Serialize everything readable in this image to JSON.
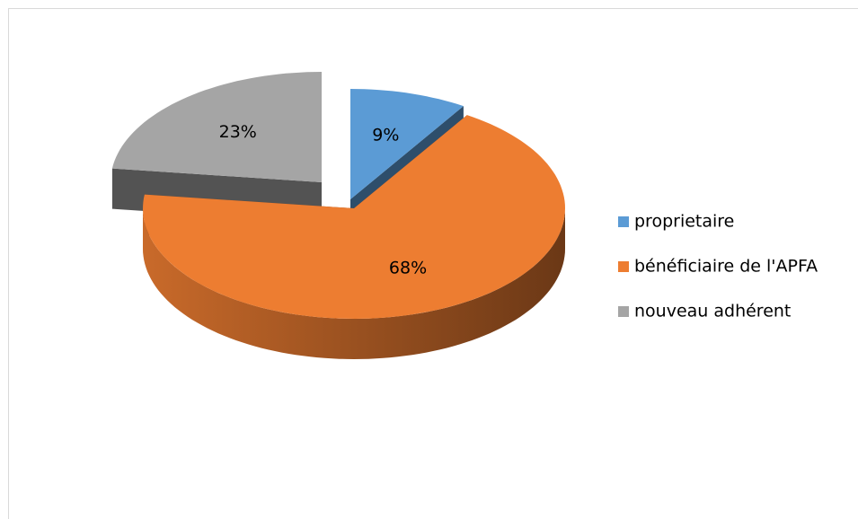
{
  "chart_data": {
    "type": "pie3d",
    "categories": [
      "proprietaire",
      "bénéficiaire de l'APFA",
      "nouveau adhérent"
    ],
    "values": [
      9,
      68,
      23
    ],
    "value_labels": [
      "9%",
      "68%",
      "23%"
    ],
    "colors": [
      "#5b9bd5",
      "#ed7d31",
      "#a5a5a5"
    ],
    "legend": "right"
  }
}
